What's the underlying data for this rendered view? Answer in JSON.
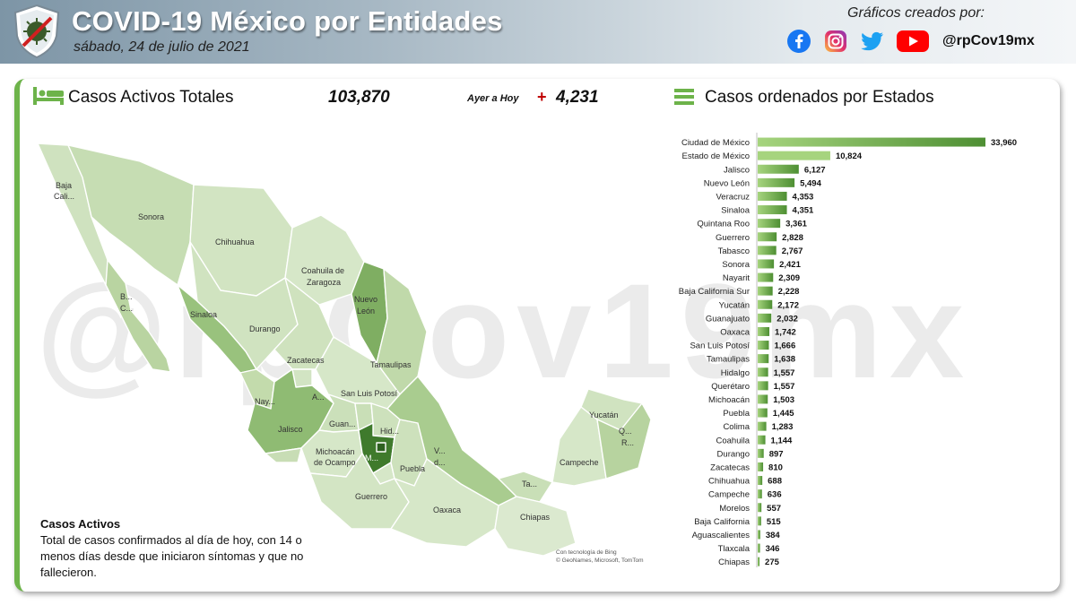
{
  "header": {
    "title": "COVID-19 México por Entidades",
    "date": "sábado, 24 de julio de 2021",
    "credit_label": "Gráficos creados por:",
    "handle": "@rpCov19mx",
    "social_icons": [
      "facebook-icon",
      "instagram-icon",
      "twitter-icon",
      "youtube-icon"
    ]
  },
  "kpi": {
    "label": "Casos Activos Totales",
    "value": "103,870",
    "change_label": "Ayer a Hoy",
    "change_sign": "+",
    "change_value": "4,231"
  },
  "ranking_title": "Casos ordenados por Estados",
  "watermark": "@rpCov19mx",
  "note": {
    "title": "Casos Activos",
    "text": "Total de casos confirmados al día de hoy, con 14 o menos días desde que iniciaron síntomas y que no fallecieron."
  },
  "map": {
    "attribution_1": "Con tecnología de Bing",
    "attribution_2": "© GeoNames, Microsoft, TomTom",
    "labels": {
      "baja_california": [
        "Baja",
        "Cali..."
      ],
      "sonora": "Sonora",
      "chihuahua": "Chihuahua",
      "coahuila": [
        "Coahuila de",
        "Zaragoza"
      ],
      "nuevo_leon": [
        "Nuevo",
        "León"
      ],
      "bcs": [
        "B...",
        "C..."
      ],
      "sinaloa": "Sinaloa",
      "durango": "Durango",
      "zacatecas": "Zacatecas",
      "tamaulipas": "Tamaulipas",
      "san_luis_potosi": "San Luis Potosí",
      "nayarit": "Nay...",
      "aguascalientes": "A...",
      "jalisco": "Jalisco",
      "guanajuato": "Guan...",
      "hidalgo": "Hid...",
      "michoacan": [
        "Michoacán",
        "de Ocampo"
      ],
      "mexico": "M...",
      "veracruz": [
        "V...",
        "d..."
      ],
      "puebla": "Puebla",
      "guerrero": "Guerrero",
      "oaxaca": "Oaxaca",
      "tabasco": "Ta...",
      "chiapas": "Chiapas",
      "campeche": "Campeche",
      "yucatan": "Yucatán",
      "quintana_roo": [
        "Q...",
        "R..."
      ]
    }
  },
  "colors": {
    "accent": "#6db34a",
    "bar_dark": "#4e8f33",
    "bar_light": "#a6d47e",
    "map_light": "#dbe9cf",
    "map_dark": "#3f7a2c",
    "change_sign": "#c00000"
  },
  "chart_data": {
    "type": "bar",
    "orientation": "horizontal",
    "title": "Casos ordenados por Estados",
    "categories": [
      "Ciudad de México",
      "Estado de México",
      "Jalisco",
      "Nuevo León",
      "Veracruz",
      "Sinaloa",
      "Quintana Roo",
      "Guerrero",
      "Tabasco",
      "Sonora",
      "Nayarit",
      "Baja California Sur",
      "Yucatán",
      "Guanajuato",
      "Oaxaca",
      "San Luis Potosí",
      "Tamaulipas",
      "Hidalgo",
      "Querétaro",
      "Michoacán",
      "Puebla",
      "Colima",
      "Coahuila",
      "Durango",
      "Zacatecas",
      "Chihuahua",
      "Campeche",
      "Morelos",
      "Baja California",
      "Aguascalientes",
      "Tlaxcala",
      "Chiapas"
    ],
    "values": [
      33960,
      10824,
      6127,
      5494,
      4353,
      4351,
      3361,
      2828,
      2767,
      2421,
      2309,
      2228,
      2172,
      2032,
      1742,
      1666,
      1638,
      1557,
      1557,
      1503,
      1445,
      1283,
      1144,
      897,
      810,
      688,
      636,
      557,
      515,
      384,
      346,
      275
    ],
    "labels": [
      "33,960",
      "10,824",
      "6,127",
      "5,494",
      "4,353",
      "4,351",
      "3,361",
      "2,828",
      "2,767",
      "2,421",
      "2,309",
      "2,228",
      "2,172",
      "2,032",
      "1,742",
      "1,666",
      "1,638",
      "1,557",
      "1,557",
      "1,503",
      "1,445",
      "1,283",
      "1,144",
      "897",
      "810",
      "688",
      "636",
      "557",
      "515",
      "384",
      "346",
      "275"
    ],
    "xlim": [
      0,
      33960
    ],
    "grid": false,
    "legend": "none"
  }
}
